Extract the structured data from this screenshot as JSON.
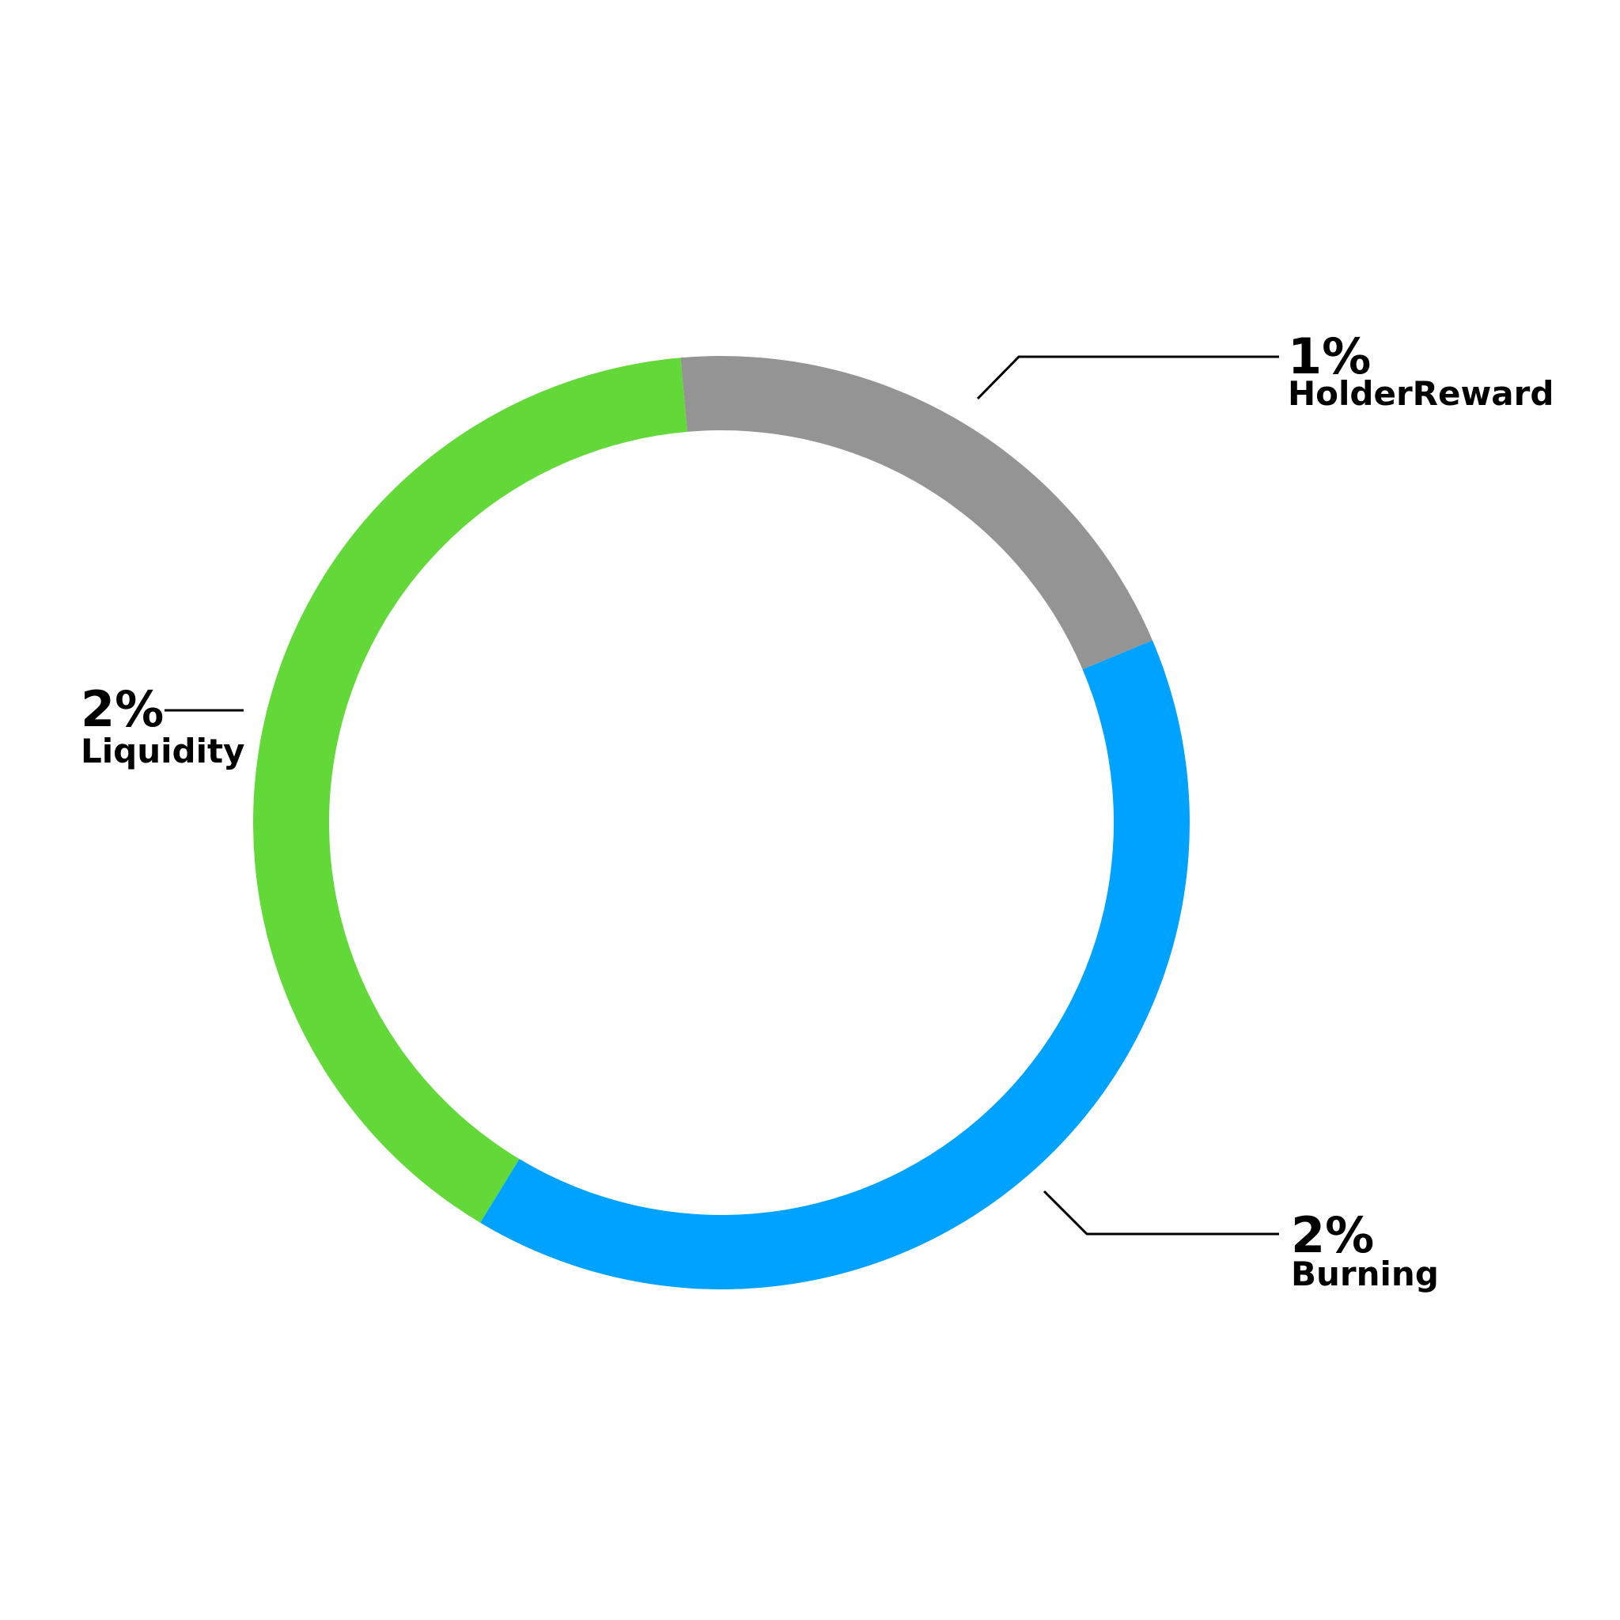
{
  "chart_data": {
    "type": "pie",
    "style": "donut",
    "slices": [
      {
        "label": "HolderReward",
        "value_text": "1%",
        "value": 1,
        "color": "#949494"
      },
      {
        "label": "Burning",
        "value_text": "2%",
        "value": 2,
        "color": "#00a2ff"
      },
      {
        "label": "Liquidity",
        "value_text": "2%",
        "value": 2,
        "color": "#63d839"
      }
    ]
  }
}
